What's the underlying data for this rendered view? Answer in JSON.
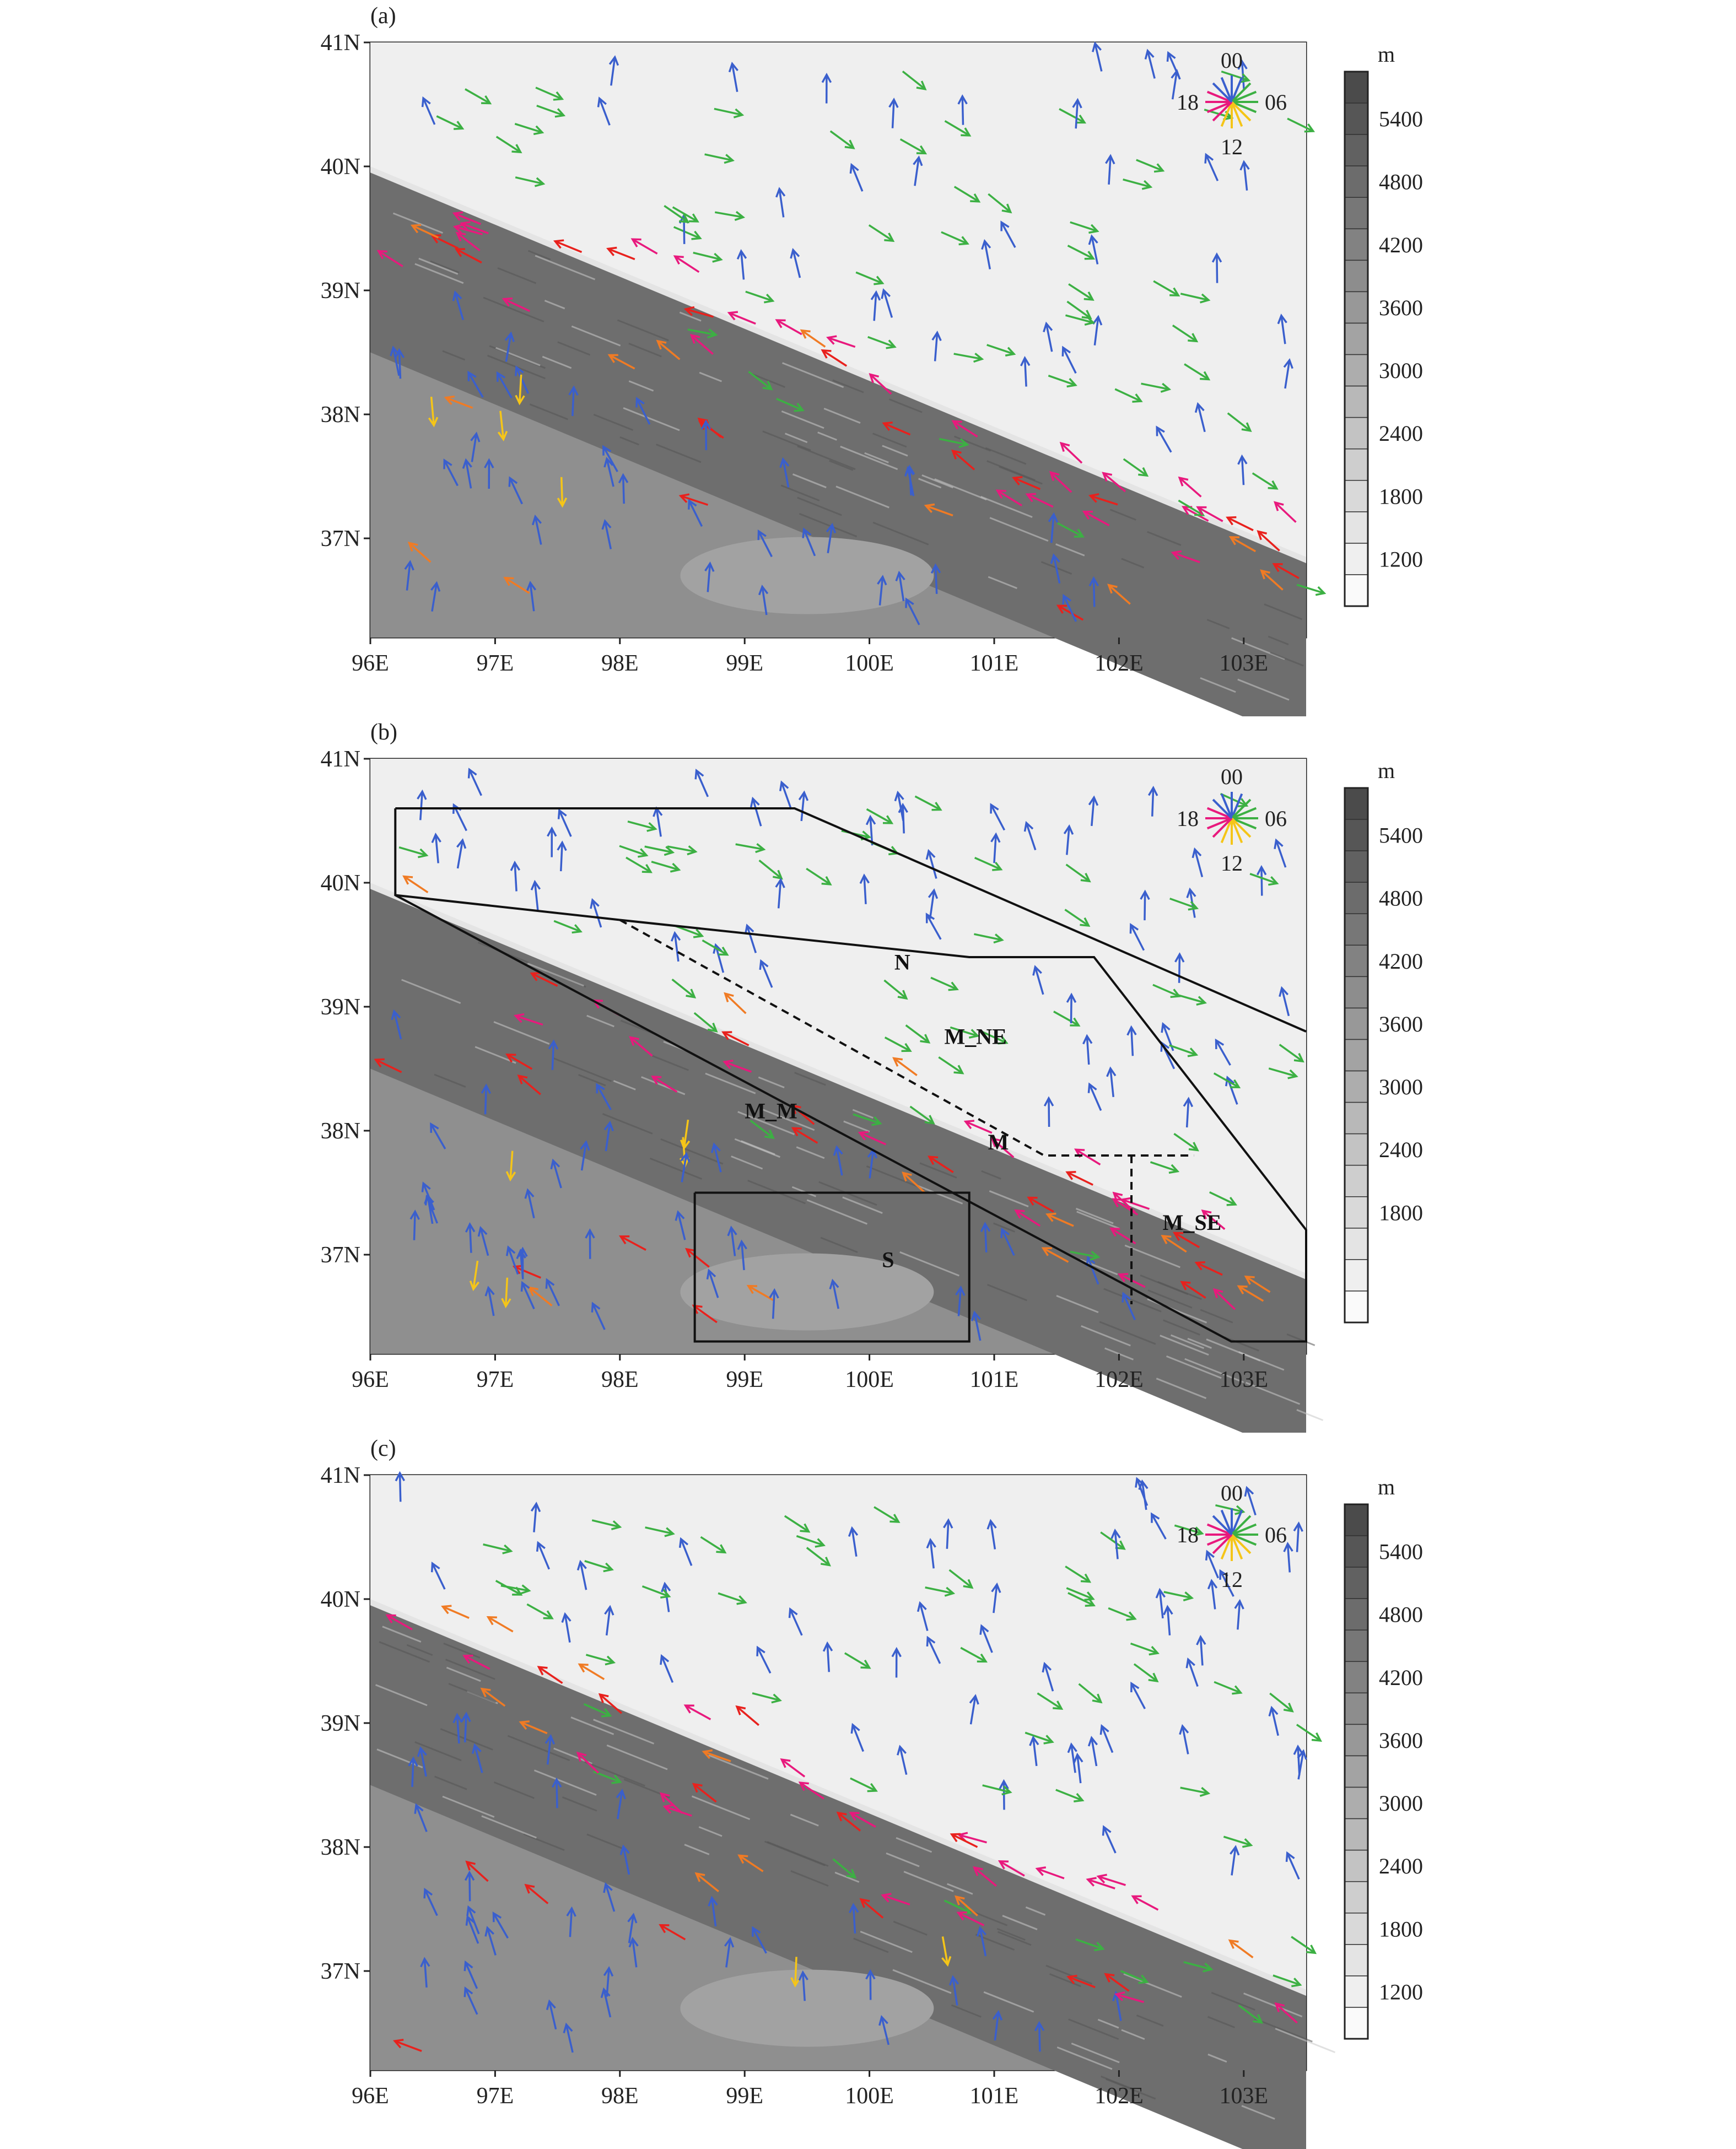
{
  "figure": {
    "panels": [
      {
        "id": "a",
        "label": "(a)"
      },
      {
        "id": "b",
        "label": "(b)"
      },
      {
        "id": "c",
        "label": "(c)"
      }
    ],
    "lon_ticks": [
      "96E",
      "97E",
      "98E",
      "99E",
      "100E",
      "101E",
      "102E",
      "103E"
    ],
    "lat_ticks": [
      "41N",
      "40N",
      "39N",
      "38N",
      "37N"
    ],
    "lon_values": [
      96,
      97,
      98,
      99,
      100,
      101,
      102,
      103
    ],
    "lat_values": [
      41,
      40,
      39,
      38,
      37
    ],
    "map_extent": {
      "lon_min": 96,
      "lon_max": 103.5,
      "lat_min": 36.2,
      "lat_max": 41
    }
  },
  "colorbar": {
    "unit": "m",
    "labels_ac": [
      "5400",
      "4800",
      "4200",
      "3600",
      "3000",
      "2400",
      "1800",
      "1200"
    ],
    "labels_b": [
      "5400",
      "4800",
      "4200",
      "3600",
      "3000",
      "2400",
      "1800"
    ],
    "levels": 17
  },
  "rose": {
    "labels": {
      "top": "00",
      "right": "06",
      "bottom": "12",
      "left": "18"
    },
    "colors": {
      "00": "#3a5fcd",
      "06": "#3cb043",
      "12": "#f5c518",
      "18": "#e8197d",
      "red": "#e8211d",
      "orange": "#f07b24"
    }
  },
  "regions": {
    "labels": [
      {
        "text": "N",
        "lon": 100.2,
        "lat": 39.3
      },
      {
        "text": "M_NE",
        "lon": 100.6,
        "lat": 38.7
      },
      {
        "text": "M_M",
        "lon": 99.0,
        "lat": 38.1
      },
      {
        "text": "M",
        "lon": 100.95,
        "lat": 37.85
      },
      {
        "text": "M_SE",
        "lon": 102.35,
        "lat": 37.2
      },
      {
        "text": "S",
        "lon": 100.1,
        "lat": 36.9
      }
    ],
    "polygons": {
      "N": [
        [
          96.2,
          40.6
        ],
        [
          99.4,
          40.6
        ],
        [
          103.5,
          38.8
        ],
        [
          103.5,
          38.8
        ]
      ],
      "outer": [
        [
          96.2,
          40.6
        ],
        [
          96.2,
          39.9
        ],
        [
          102.9,
          36.3
        ],
        [
          103.5,
          36.3
        ],
        [
          103.5,
          37.1
        ],
        [
          101.8,
          39.4
        ],
        [
          100.8,
          39.4
        ],
        [
          98.0,
          39.7
        ],
        [
          96.2,
          39.9
        ]
      ],
      "S_box": [
        [
          98.6,
          37.5
        ],
        [
          100.8,
          37.5
        ],
        [
          100.8,
          36.3
        ],
        [
          98.6,
          36.3
        ]
      ]
    }
  }
}
